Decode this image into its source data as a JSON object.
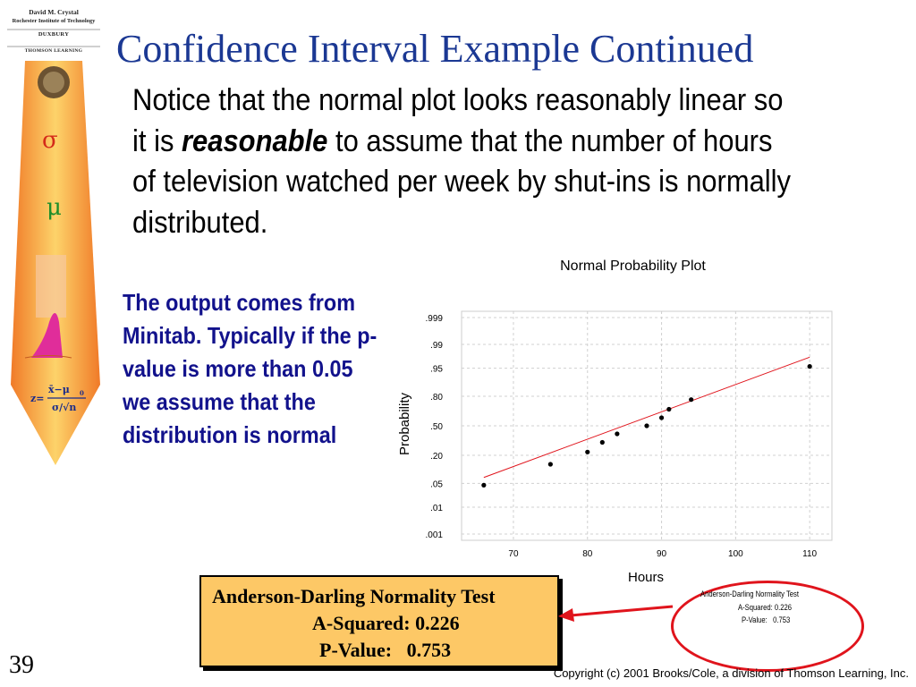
{
  "sidebar": {
    "author": "David M. Crystal",
    "institution": "Rochester Institute of Technology",
    "publisher_1": "DUXBURY",
    "publisher_2": "THOMSON LEARNING",
    "sigma": "σ",
    "mu": "μ"
  },
  "title": "Confidence Interval Example Continued",
  "intro": {
    "before": "Notice that the normal plot looks reasonably linear so it is ",
    "emphasis": "reasonable",
    "after": " to assume that the number of hours of television watched per week by shut-ins is normally distributed."
  },
  "side_note": "The output comes from Minitab. Typically if the p-value is more than 0.05 we assume that the distribution is normal",
  "result_box": {
    "heading": "Anderson-Darling Normality Test",
    "a_squared": "A-Squared: 0.226",
    "p_value": "P-Value:   0.753"
  },
  "mini_output": {
    "heading": "Anderson-Darling Normality Test",
    "a_squared": "A-Squared: 0.226",
    "p_value": "P-Value:   0.753"
  },
  "slide_number": "39",
  "copyright": "Copyright (c) 2001 Brooks/Cole, a division of Thomson Learning, Inc.",
  "colors": {
    "title": "#1b3893",
    "side_note": "#12128c",
    "result_box": "#fdc866",
    "highlight": "#e0141c",
    "fit_line": "#e0141c"
  },
  "chart_data": {
    "type": "scatter",
    "title": "Normal Probability Plot",
    "xlabel": "Hours",
    "ylabel": "Probability",
    "xlim": [
      63,
      113
    ],
    "x_ticks": [
      70,
      80,
      90,
      100,
      110
    ],
    "y_ticks": [
      ".999",
      ".99",
      ".95",
      ".80",
      ".50",
      ".20",
      ".05",
      ".01",
      ".001"
    ],
    "y_scale": "normal probability",
    "grid": true,
    "points": [
      {
        "x": 66,
        "y": 0.045
      },
      {
        "x": 75,
        "y": 0.136
      },
      {
        "x": 80,
        "y": 0.227
      },
      {
        "x": 82,
        "y": 0.318
      },
      {
        "x": 84,
        "y": 0.409
      },
      {
        "x": 88,
        "y": 0.5
      },
      {
        "x": 90,
        "y": 0.591
      },
      {
        "x": 91,
        "y": 0.682
      },
      {
        "x": 94,
        "y": 0.773
      },
      {
        "x": 110,
        "y": 0.955
      }
    ],
    "fit_line": [
      {
        "x": 66,
        "y": 0.07
      },
      {
        "x": 110,
        "y": 0.975
      }
    ]
  }
}
